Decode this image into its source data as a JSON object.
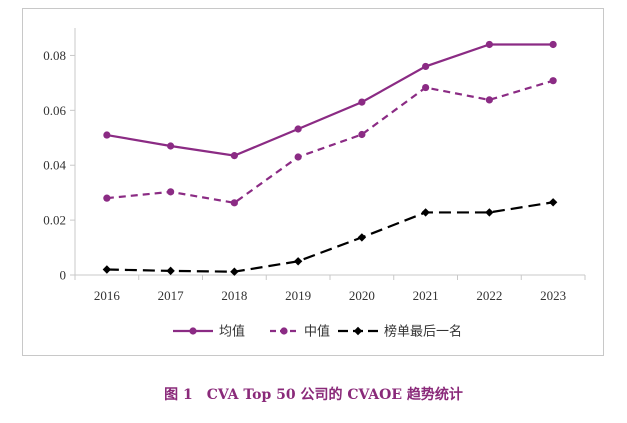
{
  "caption": "图 1　CVA Top 50 公司的 CVAOE 趋势统计",
  "colors": {
    "mean": "#8b2b84",
    "median": "#8b2b84",
    "last": "#000000",
    "axis": "#c8c8c8",
    "caption": "#8a2a7a"
  },
  "chart_data": {
    "type": "line",
    "title": "",
    "xlabel": "",
    "ylabel": "",
    "categories": [
      "2016",
      "2017",
      "2018",
      "2019",
      "2020",
      "2021",
      "2022",
      "2023"
    ],
    "ylim": [
      0,
      0.09
    ],
    "yticks": [
      0,
      0.02,
      0.04,
      0.06,
      0.08
    ],
    "ytick_labels": [
      "0",
      "0.02",
      "0.04",
      "0.06",
      "0.08"
    ],
    "grid": false,
    "legend_position": "bottom",
    "series": [
      {
        "name": "均值",
        "style": "solid",
        "marker": "circle",
        "values": [
          0.051,
          0.047,
          0.0435,
          0.0532,
          0.063,
          0.076,
          0.084,
          0.084
        ]
      },
      {
        "name": "中值",
        "style": "dashed",
        "marker": "circle",
        "values": [
          0.028,
          0.0303,
          0.0263,
          0.043,
          0.0512,
          0.0683,
          0.0638,
          0.0708
        ]
      },
      {
        "name": "榜单最后一名",
        "style": "dashed",
        "marker": "diamond",
        "values": [
          0.002,
          0.0015,
          0.0012,
          0.005,
          0.0137,
          0.0228,
          0.0228,
          0.0265
        ]
      }
    ]
  }
}
